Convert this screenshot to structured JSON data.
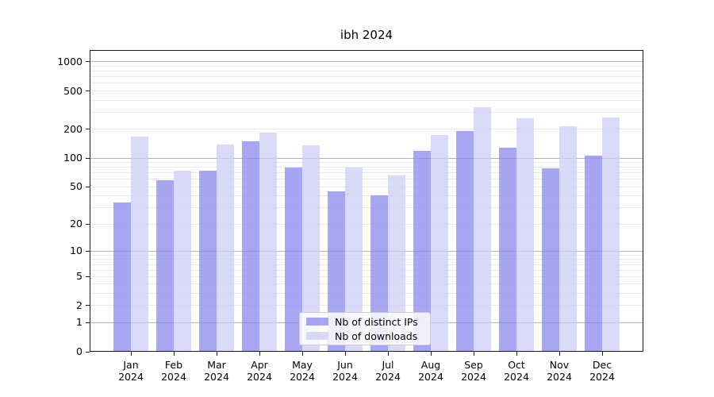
{
  "chart_data": {
    "type": "bar",
    "title": "ibh 2024",
    "categories": [
      "Jan",
      "Feb",
      "Mar",
      "Apr",
      "May",
      "Jun",
      "Jul",
      "Aug",
      "Sep",
      "Oct",
      "Nov",
      "Dec"
    ],
    "year_label": "2024",
    "series": [
      {
        "name": "Nb of distinct IPs",
        "color": "#8888ee",
        "opacity": 0.75,
        "values": [
          34,
          59,
          74,
          150,
          79,
          45,
          41,
          120,
          193,
          128,
          78,
          107
        ]
      },
      {
        "name": "Nb of downloads",
        "color": "#ccccf5",
        "opacity": 0.75,
        "values": [
          168,
          74,
          140,
          183,
          137,
          79,
          66,
          173,
          340,
          260,
          216,
          263
        ]
      }
    ],
    "xlabel": "",
    "ylabel": "",
    "yscale": "log1p",
    "ylim": [
      0,
      1330
    ],
    "yticks": [
      0,
      1,
      2,
      5,
      10,
      20,
      50,
      100,
      200,
      500,
      1000
    ],
    "major_gridline_values": [
      1,
      10,
      100,
      1000
    ],
    "grid": true,
    "legend_position": "lower center",
    "colors": {
      "major_grid": "#b3b3b3",
      "minor_grid": "#e9e9e9",
      "axis": "#1a1a1a",
      "text": "#000000",
      "background": "#ffffff"
    }
  }
}
